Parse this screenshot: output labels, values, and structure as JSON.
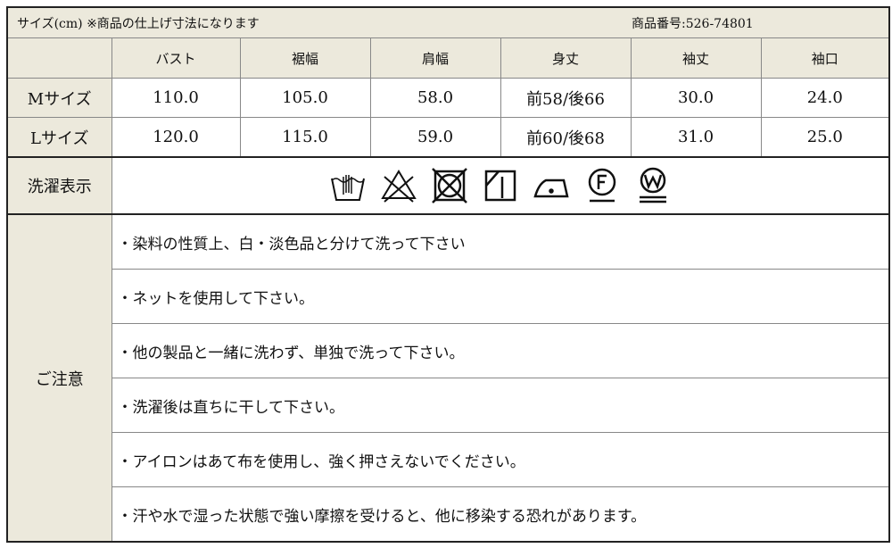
{
  "title": "サイズ(cm) ※商品の仕上げ寸法になります",
  "product_number": "商品番号:526-74801",
  "columns": [
    "バスト",
    "裾幅",
    "肩幅",
    "身丈",
    "袖丈",
    "袖口"
  ],
  "rows": [
    {
      "label": "Mサイズ",
      "values": [
        "110.0",
        "105.0",
        "58.0",
        "前58/後66",
        "30.0",
        "24.0"
      ]
    },
    {
      "label": "Lサイズ",
      "values": [
        "120.0",
        "115.0",
        "59.0",
        "前60/後68",
        "31.0",
        "25.0"
      ]
    }
  ],
  "wash_label": "洗濯表示",
  "wash_icons": [
    "hand-wash-icon",
    "no-bleach-icon",
    "no-tumble-dry-icon",
    "line-dry-shade-icon",
    "iron-low-icon",
    "dry-clean-f-icon",
    "wet-clean-w-icon"
  ],
  "notes_label": "ご注意",
  "notes": [
    "・染料の性質上、白・淡色品と分けて洗って下さい",
    "・ネットを使用して下さい。",
    "・他の製品と一緒に洗わず、単独で洗って下さい。",
    "・洗濯後は直ちに干して下さい。",
    "・アイロンはあて布を使用し、強く押さえないでください。",
    "・汗や水で湿った状態で強い摩擦を受けると、他に移染する恐れがあります。"
  ],
  "colors": {
    "header_bg": "#ECE9DC",
    "border": "#222222"
  }
}
